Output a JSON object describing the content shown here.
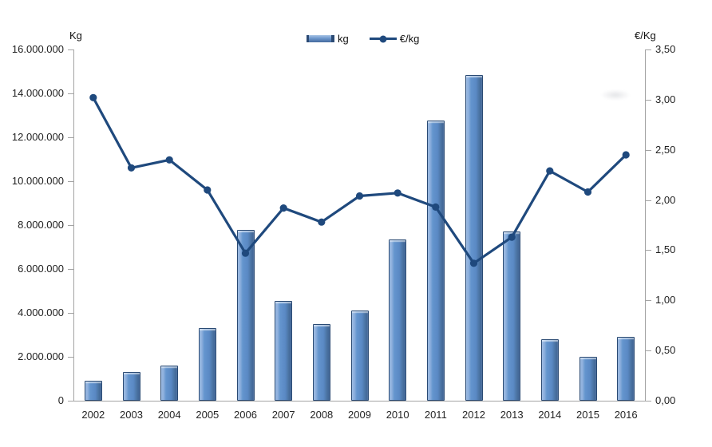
{
  "chart": {
    "left_axis_title": "Kg",
    "right_axis_title": "€/Kg",
    "legend": {
      "bar_label": "kg",
      "line_label": "€/kg"
    },
    "left_tick_labels": [
      "16.000.000",
      "14.000.000",
      "12.000.000",
      "10.000.000",
      "8.000.000",
      "6.000.000",
      "4.000.000",
      "2.000.000",
      "0"
    ],
    "right_tick_labels": [
      "3,50",
      "3,00",
      "2,50",
      "2,00",
      "1,50",
      "1,00",
      "0,50",
      "0,00"
    ],
    "colors": {
      "bar_fill": "#5d8cc8",
      "bar_border": "#2a4a73",
      "line": "#1f497d",
      "axis": "#a3a3a3",
      "text": "#1f1f1f"
    }
  },
  "chart_data": {
    "type": "bar+line combo, dual y-axes",
    "categories": [
      "2002",
      "2003",
      "2004",
      "2005",
      "2006",
      "2007",
      "2008",
      "2009",
      "2010",
      "2011",
      "2012",
      "2013",
      "2014",
      "2015",
      "2016"
    ],
    "series": [
      {
        "name": "kg",
        "type": "bar",
        "axis": "left",
        "values": [
          900000,
          1300000,
          1600000,
          3300000,
          7800000,
          4550000,
          3500000,
          4100000,
          7350000,
          12750000,
          14850000,
          7700000,
          2800000,
          2000000,
          2900000
        ]
      },
      {
        "name": "€/kg",
        "type": "line",
        "axis": "right",
        "values": [
          3.02,
          2.32,
          2.4,
          2.1,
          1.47,
          1.92,
          1.78,
          2.04,
          2.07,
          1.93,
          1.37,
          1.63,
          2.29,
          2.08,
          2.45
        ]
      }
    ],
    "left_axis": {
      "title": "Kg",
      "min": 0,
      "max": 16000000,
      "step": 2000000,
      "tick_format": "thousands dot separated"
    },
    "right_axis": {
      "title": "€/Kg",
      "min": 0,
      "max": 3.5,
      "step": 0.5,
      "tick_format": "comma decimal"
    },
    "legend_position": "top-center",
    "grid": false,
    "title": ""
  }
}
